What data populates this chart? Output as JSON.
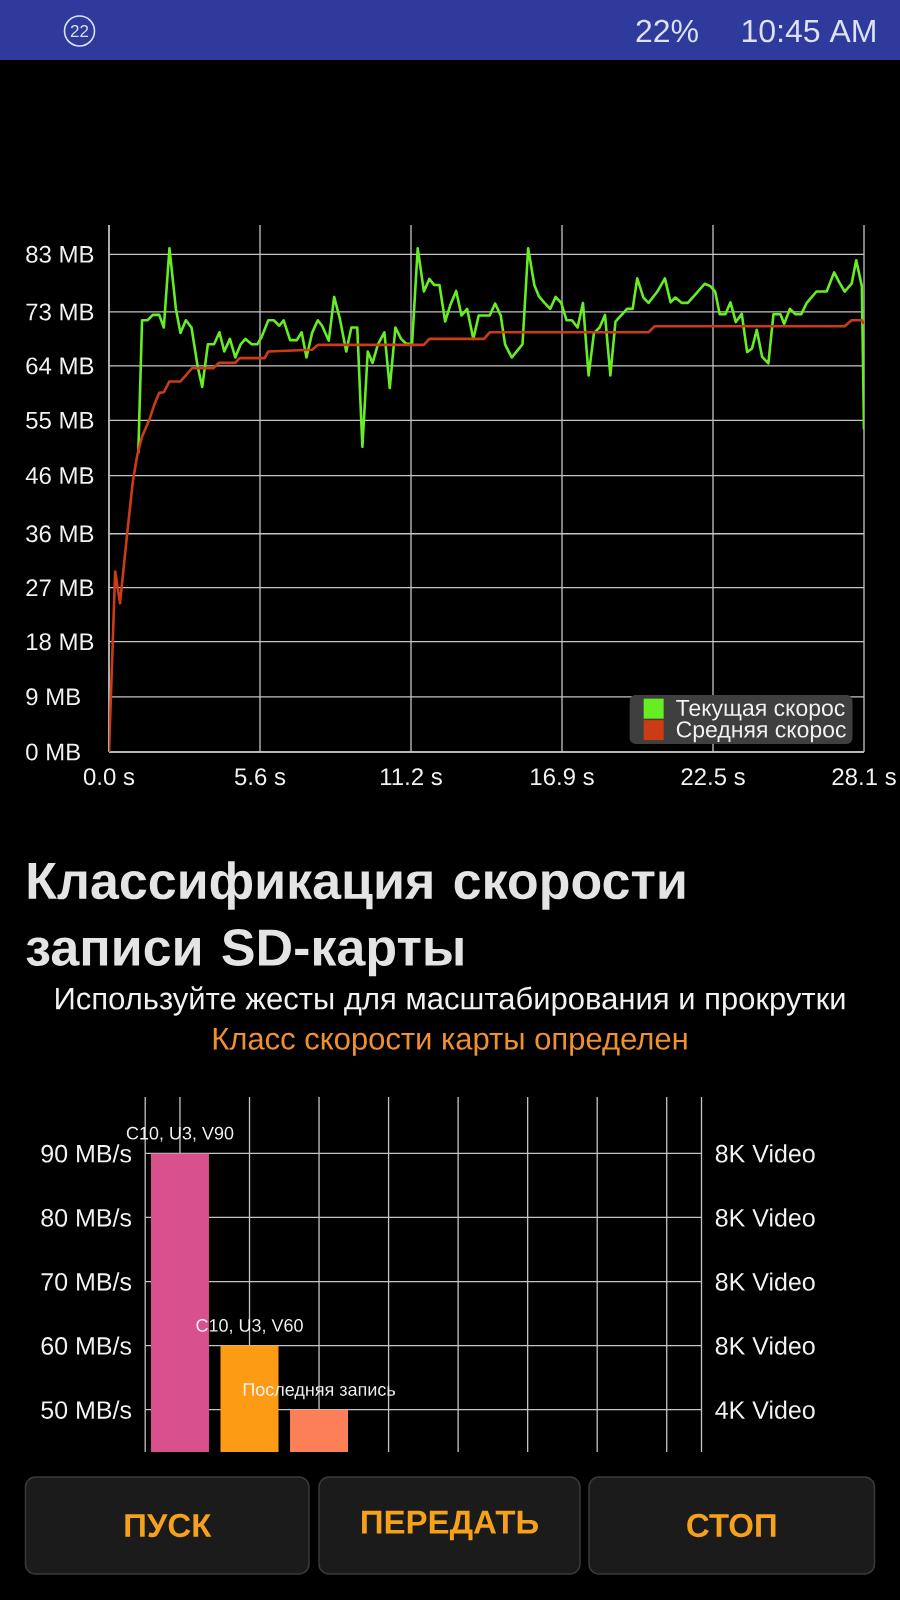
{
  "chart_data": [
    {
      "type": "line",
      "annotations": [
        "22",
        "22%",
        "10:45 AM"
      ],
      "xlim": [
        0,
        28.1
      ],
      "xticks": [
        {
          "value": 0,
          "label": "0.0 s"
        },
        {
          "value": 5.62,
          "label": "5.6 s"
        },
        {
          "value": 11.24,
          "label": "11.2 s"
        },
        {
          "value": 16.86,
          "label": "16.9 s"
        },
        {
          "value": 22.48,
          "label": "22.5 s"
        },
        {
          "value": 28.1,
          "label": "28.1 s"
        }
      ],
      "ylim": [
        0,
        87.9
      ],
      "yticks": [
        {
          "value": 0,
          "label": "0 MB"
        },
        {
          "value": 9.2,
          "label": "9 MB"
        },
        {
          "value": 18.4,
          "label": "18 MB"
        },
        {
          "value": 27.4,
          "label": "27 MB"
        },
        {
          "value": 36.4,
          "label": "36 MB"
        },
        {
          "value": 46.1,
          "label": "46 MB"
        },
        {
          "value": 55.3,
          "label": "55 MB"
        },
        {
          "value": 64.4,
          "label": "64 MB"
        },
        {
          "value": 73.4,
          "label": "73 MB"
        },
        {
          "value": 83.0,
          "label": "83 MB"
        }
      ],
      "grid": true,
      "legend": "bottom right",
      "series": [
        {
          "name": "Текущая скорос",
          "color": "#66ee22",
          "x": [
            1.09,
            1.23,
            1.43,
            1.63,
            1.87,
            2.04,
            2.25,
            2.49,
            2.66,
            2.86,
            3.07,
            3.3,
            3.47,
            3.68,
            3.91,
            4.11,
            4.29,
            4.5,
            4.7,
            4.9,
            5.08,
            5.31,
            5.52,
            5.68,
            5.93,
            6.13,
            6.34,
            6.5,
            6.74,
            6.99,
            7.17,
            7.35,
            7.56,
            7.77,
            7.93,
            8.18,
            8.38,
            8.59,
            8.83,
            9.02,
            9.24,
            9.43,
            9.63,
            9.81,
            10.01,
            10.25,
            10.45,
            10.66,
            10.87,
            11.06,
            11.28,
            11.49,
            11.72,
            11.92,
            12.1,
            12.3,
            12.51,
            12.7,
            12.92,
            13.12,
            13.33,
            13.56,
            13.76,
            14.17,
            14.37,
            14.58,
            14.74,
            14.99,
            15.19,
            15.39,
            15.6,
            15.83,
            16.0,
            16.21,
            16.42,
            16.62,
            16.83,
            17.03,
            17.23,
            17.44,
            17.64,
            17.85,
            18.05,
            18.26,
            18.46,
            18.66,
            18.85,
            19.28,
            19.49,
            19.66,
            19.89,
            20.08,
            20.41,
            20.69,
            20.9,
            21.08,
            21.32,
            21.54,
            21.86,
            22.17,
            22.38,
            22.56,
            22.73,
            22.94,
            23.13,
            23.33,
            23.55,
            23.75,
            23.93,
            24.11,
            24.31,
            24.54,
            24.73,
            24.99,
            25.13,
            25.34,
            25.55,
            25.76,
            25.97,
            26.33,
            26.71,
            26.99,
            27.17,
            27.38,
            27.64,
            27.81,
            28.02,
            28.1
          ],
          "values": [
            49.8,
            72.0,
            72.0,
            72.9,
            72.9,
            70.8,
            84.0,
            73.9,
            69.9,
            72.0,
            70.8,
            64.3,
            60.9,
            68.0,
            68.0,
            70.0,
            66.8,
            68.9,
            65.8,
            68.0,
            68.9,
            68.0,
            68.0,
            69.2,
            72.0,
            72.0,
            71.1,
            72.0,
            68.7,
            68.7,
            70.0,
            65.8,
            69.9,
            72.0,
            71.1,
            68.6,
            75.9,
            72.3,
            66.8,
            70.8,
            70.8,
            50.9,
            66.8,
            64.9,
            68.0,
            70.0,
            60.7,
            70.8,
            68.9,
            68.1,
            68.1,
            84.0,
            76.8,
            78.9,
            77.9,
            77.9,
            71.8,
            74.5,
            76.9,
            72.8,
            73.9,
            68.9,
            72.8,
            72.8,
            74.8,
            72.8,
            68.0,
            65.8,
            66.9,
            68.0,
            84.0,
            77.9,
            76.0,
            74.9,
            73.9,
            75.9,
            74.9,
            72.0,
            72.0,
            70.8,
            74.9,
            62.8,
            69.9,
            70.8,
            72.9,
            62.8,
            71.8,
            73.9,
            73.9,
            79.0,
            75.8,
            74.9,
            76.8,
            79.0,
            75.0,
            75.8,
            74.9,
            74.9,
            76.5,
            78.1,
            77.7,
            76.8,
            73.0,
            73.0,
            75.0,
            71.7,
            73.1,
            66.7,
            67.3,
            70.4,
            65.9,
            64.8,
            73.0,
            73.0,
            71.4,
            73.9,
            73.0,
            73.0,
            74.9,
            76.8,
            76.8,
            80.0,
            78.4,
            76.8,
            78.1,
            82.0,
            77.7,
            53.8
          ]
        },
        {
          "name": "Средняя скорос",
          "color": "#cc3c14",
          "x": [
            0,
            0.23,
            0.41,
            0.68,
            0.89,
            1.05,
            1.23,
            1.5,
            1.7,
            1.87,
            2.04,
            2.25,
            2.66,
            2.86,
            3.09,
            3.88,
            4.09,
            4.7,
            4.86,
            5.79,
            5.93,
            7.56,
            7.77,
            11.72,
            11.92,
            13.96,
            14.17,
            20.08,
            20.31,
            27.38,
            27.64,
            28.02,
            28.1
          ],
          "values": [
            0,
            30.1,
            24.8,
            36.6,
            45.2,
            49.5,
            52.6,
            55.4,
            58.1,
            59.9,
            60.0,
            61.8,
            61.8,
            62.8,
            64.0,
            64.0,
            64.9,
            64.9,
            65.7,
            65.7,
            66.8,
            67.1,
            67.9,
            67.9,
            68.9,
            68.9,
            70.0,
            70.0,
            71.0,
            71.0,
            72.0,
            72.0,
            71.4
          ]
        }
      ]
    },
    {
      "type": "bar",
      "title": "Классификация скорости записи SD-карты",
      "subtitle": "Используйте жесты для масштабирования и прокрутки",
      "annotations": [
        "Класс скорости карты определен",
        "ПУСК",
        "ПЕРЕДАТЬ",
        "СТОП",
        "8K Video",
        "8K Video",
        "8K Video",
        "8K Video",
        "4K Video"
      ],
      "categories": [
        "C10, U3, V90",
        "C10, U3, V60",
        "Последняя запись",
        null,
        null,
        null,
        null,
        null
      ],
      "values": [
        90,
        60,
        50,
        null,
        null,
        null,
        null,
        null
      ],
      "colors": [
        "#d8508c",
        "#fd9c14",
        "#fd7f57",
        null,
        null,
        null,
        null,
        null
      ],
      "ylim": [
        43.4,
        98.8
      ],
      "yticks": [
        {
          "value": 50,
          "label": "50 MB/s"
        },
        {
          "value": 60,
          "label": "60 MB/s"
        },
        {
          "value": 70,
          "label": "70 MB/s"
        },
        {
          "value": 80,
          "label": "80 MB/s"
        },
        {
          "value": 90,
          "label": "90 MB/s"
        }
      ],
      "grid": true
    }
  ]
}
